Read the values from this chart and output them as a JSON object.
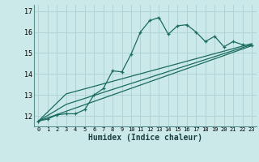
{
  "xlabel": "Humidex (Indice chaleur)",
  "bg_color": "#cce9e9",
  "line_color": "#1a6b60",
  "grid_color": "#b0d4d4",
  "xlim": [
    -0.5,
    23.5
  ],
  "ylim": [
    11.5,
    17.3
  ],
  "xticks": [
    0,
    1,
    2,
    3,
    4,
    5,
    6,
    7,
    8,
    9,
    10,
    11,
    12,
    13,
    14,
    15,
    16,
    17,
    18,
    19,
    20,
    21,
    22,
    23
  ],
  "yticks": [
    12,
    13,
    14,
    15,
    16,
    17
  ],
  "line1_x": [
    0,
    1,
    2,
    3,
    4,
    5,
    6,
    7,
    8,
    9,
    10,
    11,
    12,
    13,
    14,
    15,
    16,
    17,
    18,
    19,
    20,
    21,
    22,
    23
  ],
  "line1_y": [
    11.75,
    11.85,
    12.05,
    12.1,
    12.1,
    12.3,
    13.0,
    13.3,
    14.15,
    14.1,
    14.95,
    16.0,
    16.55,
    16.7,
    15.9,
    16.3,
    16.35,
    16.0,
    15.55,
    15.8,
    15.3,
    15.55,
    15.4,
    15.35
  ],
  "line2_x": [
    0,
    23
  ],
  "line2_y": [
    11.75,
    15.35
  ],
  "line3_x": [
    0,
    3,
    23
  ],
  "line3_y": [
    11.75,
    12.55,
    15.4
  ],
  "line4_x": [
    0,
    3,
    23
  ],
  "line4_y": [
    11.75,
    13.05,
    15.45
  ]
}
